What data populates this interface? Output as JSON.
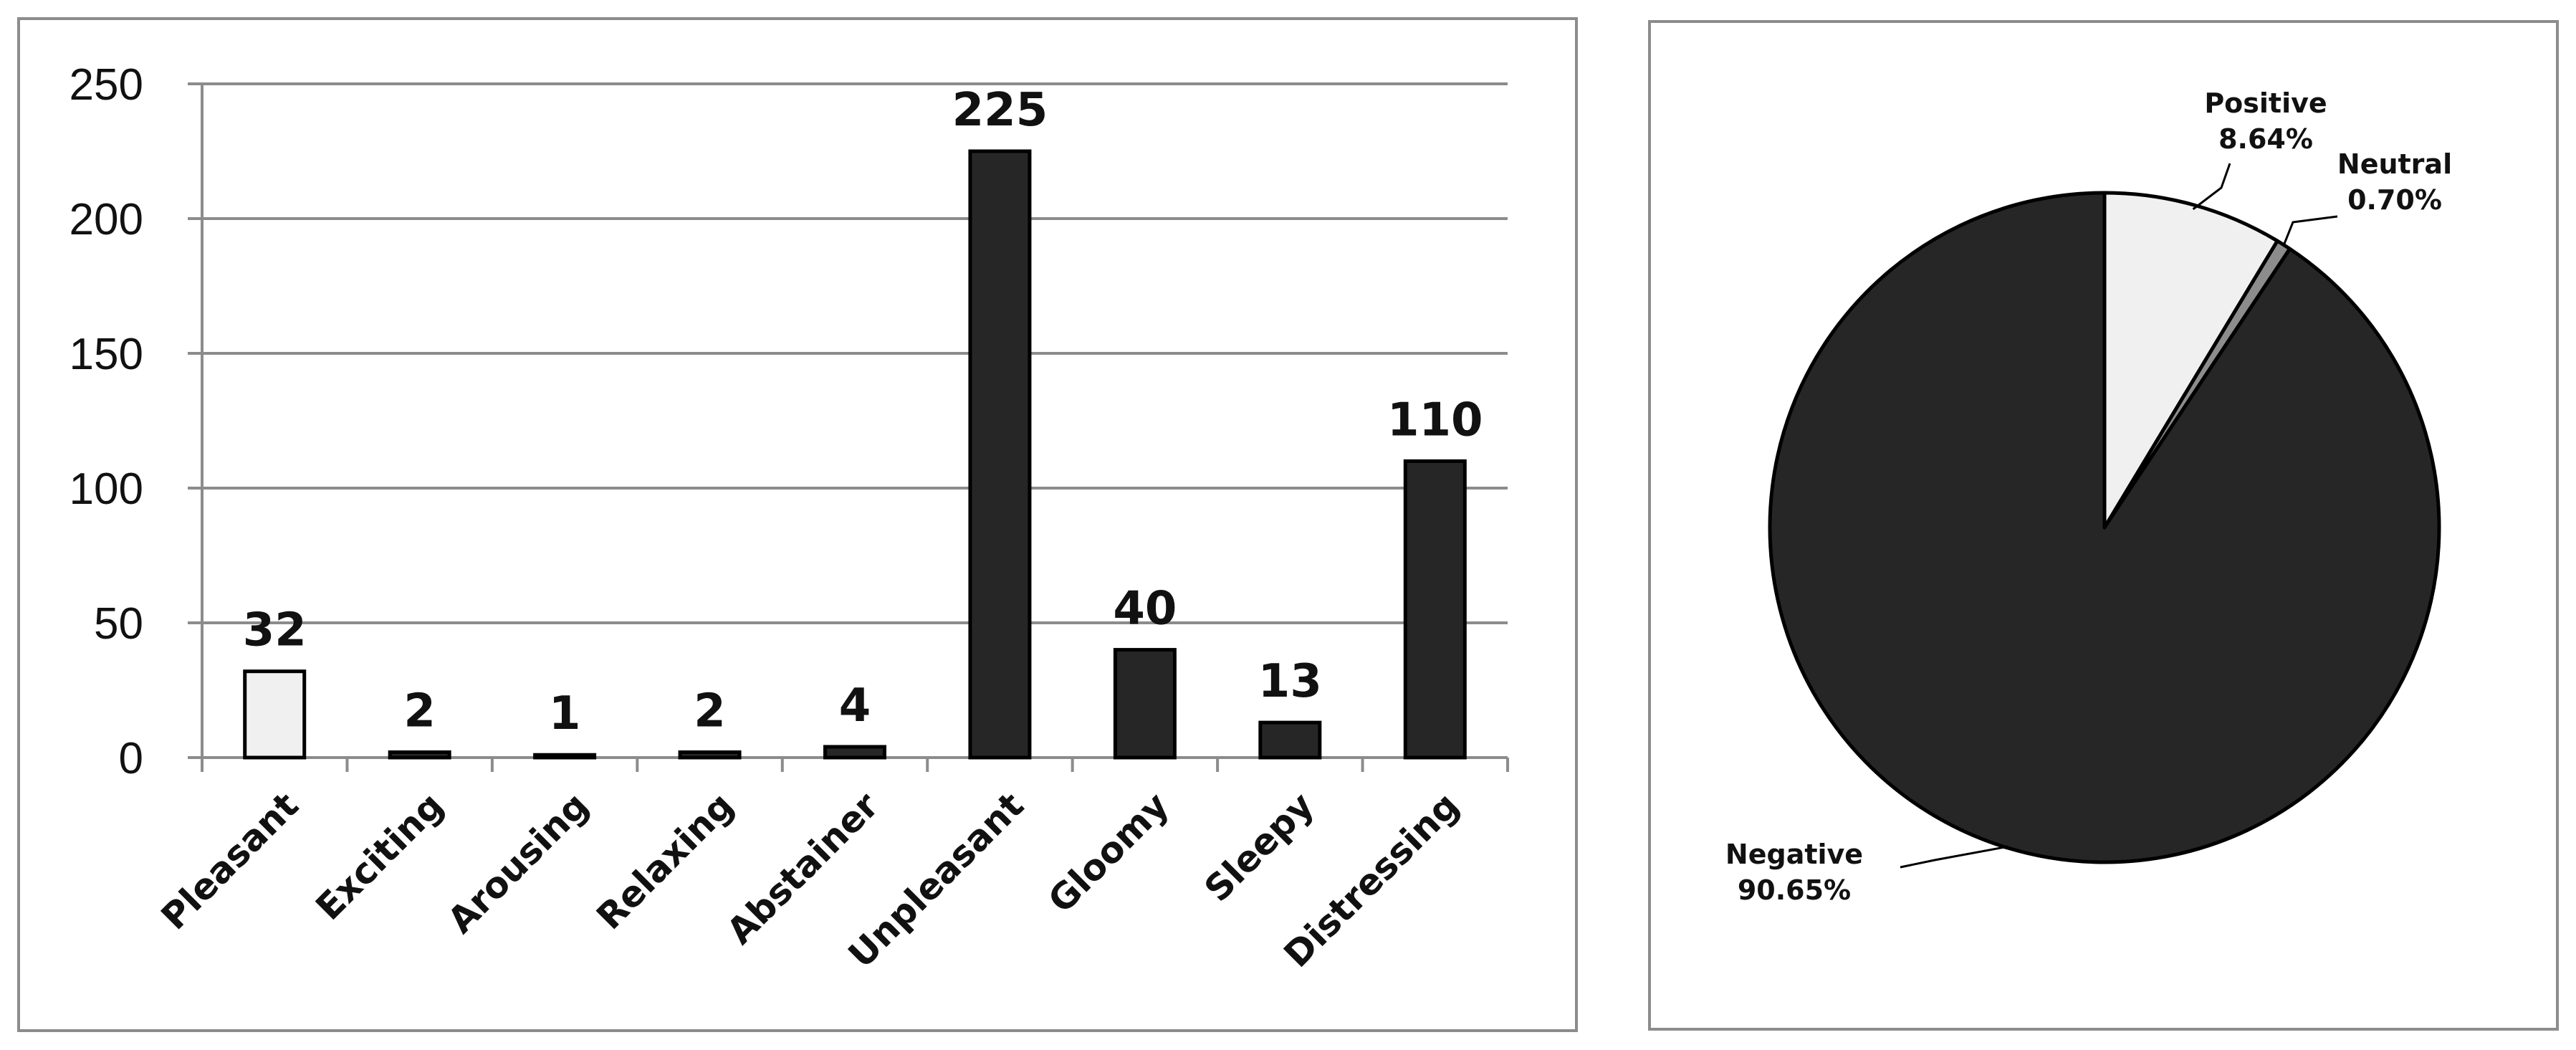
{
  "colors": {
    "dark": "#262626",
    "light": "#f0f0f0",
    "neutral": "#8c8c8c",
    "grid": "#8c8c8c",
    "frame": "#8c8c8c"
  },
  "chart_data": [
    {
      "type": "bar",
      "categories": [
        "Pleasant",
        "Exciting",
        "Arousing",
        "Relaxing",
        "Abstainer",
        "Unpleasant",
        "Gloomy",
        "Sleepy",
        "Distressing"
      ],
      "values": [
        32,
        2,
        1,
        2,
        4,
        225,
        40,
        13,
        110
      ],
      "data_labels": [
        "32",
        "2",
        "1",
        "2",
        "4",
        "225",
        "40",
        "13",
        "110"
      ],
      "fills": [
        "light",
        "dark",
        "dark",
        "dark",
        "dark",
        "dark",
        "dark",
        "dark",
        "dark"
      ],
      "ylim": [
        0,
        250
      ],
      "yticks": [
        0,
        50,
        100,
        150,
        200,
        250
      ],
      "grid": true,
      "legend": "none"
    },
    {
      "type": "pie",
      "slices": [
        {
          "label": "Positive",
          "pct_text": "8.64%",
          "value": 8.64,
          "fill": "light"
        },
        {
          "label": "Neutral",
          "pct_text": "0.70%",
          "value": 0.7,
          "fill": "neutral"
        },
        {
          "label": "Negative",
          "pct_text": "90.65%",
          "value": 90.65,
          "fill": "dark"
        }
      ],
      "start": "12 o'clock",
      "direction": "clockwise",
      "labels": "outside with leader lines"
    }
  ]
}
